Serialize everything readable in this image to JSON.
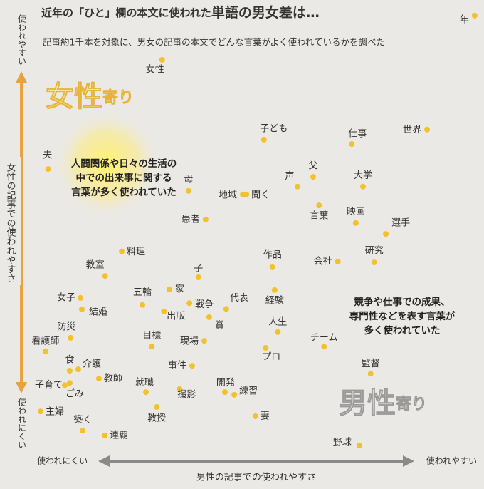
{
  "chart_data": {
    "type": "scatter",
    "title": "近年の「ひと」欄の本文に使われた",
    "title_emphasis": "単語の男女差は…",
    "subtitle": "記事約1千本を対象に、男女の記事の本文でどんな言葉がよく使われているかを調べた",
    "xaxis": {
      "label": "男性の記事での使われやすさ",
      "low": "使われにくい",
      "high": "使われやすい"
    },
    "yaxis": {
      "label": "女性の記事での使われやすさ",
      "low": "使われにくい",
      "high": "使われやすい"
    },
    "regions": [
      {
        "name": "女性",
        "suffix": "寄り"
      },
      {
        "name": "男性",
        "suffix": "寄り"
      }
    ],
    "annotations": [
      [
        "人間関係や日々の生活の",
        "中での出来事に関する",
        "言葉が多く使われていた"
      ],
      [
        "競争や仕事での成果、",
        "専門性などを表す言葉が",
        "多く使われていた"
      ]
    ],
    "color": "#f2c12e",
    "xlim": [
      0,
      100
    ],
    "ylim": [
      0,
      100
    ],
    "points": [
      {
        "label": "年",
        "x": 99.5,
        "y": 99.7
      },
      {
        "label": "女性",
        "x": 29.8,
        "y": 89.6
      },
      {
        "label": "子ども",
        "x": 52.5,
        "y": 71.4
      },
      {
        "label": "仕事",
        "x": 72.1,
        "y": 70.4
      },
      {
        "label": "世界",
        "x": 88.9,
        "y": 73.7
      },
      {
        "label": "夫",
        "x": 4.4,
        "y": 64.7
      },
      {
        "label": "父",
        "x": 63.5,
        "y": 62.9
      },
      {
        "label": "大学",
        "x": 74.6,
        "y": 60.7
      },
      {
        "label": "声",
        "x": 60.0,
        "y": 60.7
      },
      {
        "label": "母",
        "x": 35.7,
        "y": 59.7
      },
      {
        "label": "地域",
        "x": 47.8,
        "y": 58.9
      },
      {
        "label": "聞く",
        "x": 48.6,
        "y": 58.9
      },
      {
        "label": "言葉",
        "x": 64.8,
        "y": 56.4
      },
      {
        "label": "映画",
        "x": 73.0,
        "y": 52.4
      },
      {
        "label": "患者",
        "x": 39.5,
        "y": 53.2
      },
      {
        "label": "選手",
        "x": 79.7,
        "y": 49.9
      },
      {
        "label": "料理",
        "x": 20.8,
        "y": 45.9
      },
      {
        "label": "研究",
        "x": 77.1,
        "y": 43.4
      },
      {
        "label": "作品",
        "x": 54.4,
        "y": 42.3
      },
      {
        "label": "会社",
        "x": 69.0,
        "y": 43.6
      },
      {
        "label": "教室",
        "x": 17.1,
        "y": 40.3
      },
      {
        "label": "子",
        "x": 37.9,
        "y": 40.0
      },
      {
        "label": "五輪",
        "x": 25.4,
        "y": 33.7
      },
      {
        "label": "家",
        "x": 31.4,
        "y": 37.2
      },
      {
        "label": "戦争",
        "x": 35.9,
        "y": 34.1
      },
      {
        "label": "代表",
        "x": 44.1,
        "y": 32.8
      },
      {
        "label": "経験",
        "x": 54.9,
        "y": 37.1
      },
      {
        "label": "女子",
        "x": 11.6,
        "y": 35.3
      },
      {
        "label": "結婚",
        "x": 11.9,
        "y": 32.7
      },
      {
        "label": "出版",
        "x": 30.2,
        "y": 32.2
      },
      {
        "label": "賞",
        "x": 40.3,
        "y": 30.9
      },
      {
        "label": "人生",
        "x": 55.6,
        "y": 27.5
      },
      {
        "label": "防災",
        "x": 9.4,
        "y": 26.2
      },
      {
        "label": "目標",
        "x": 27.5,
        "y": 24.2
      },
      {
        "label": "現場",
        "x": 39.2,
        "y": 25.5
      },
      {
        "label": "チーム",
        "x": 65.9,
        "y": 24.2
      },
      {
        "label": "看護師",
        "x": 3.8,
        "y": 23.1
      },
      {
        "label": "プロ",
        "x": 52.9,
        "y": 23.9
      },
      {
        "label": "食",
        "x": 9.2,
        "y": 18.7
      },
      {
        "label": "介護",
        "x": 11.1,
        "y": 19.0
      },
      {
        "label": "事件",
        "x": 36.5,
        "y": 19.8
      },
      {
        "label": "監督",
        "x": 76.3,
        "y": 18.0
      },
      {
        "label": "子育て",
        "x": 8.1,
        "y": 15.4
      },
      {
        "label": "教師",
        "x": 15.7,
        "y": 16.9
      },
      {
        "label": "ごみ",
        "x": 9.2,
        "y": 15.9
      },
      {
        "label": "就職",
        "x": 26.2,
        "y": 13.8
      },
      {
        "label": "開発",
        "x": 43.8,
        "y": 13.8
      },
      {
        "label": "練習",
        "x": 45.9,
        "y": 13.2
      },
      {
        "label": "撮影",
        "x": 33.7,
        "y": 14.5
      },
      {
        "label": "教授",
        "x": 28.6,
        "y": 10.4
      },
      {
        "label": "主婦",
        "x": 2.7,
        "y": 9.4
      },
      {
        "label": "妻",
        "x": 50.6,
        "y": 8.3
      },
      {
        "label": "築く",
        "x": 12.1,
        "y": 5.0
      },
      {
        "label": "連覇",
        "x": 17.0,
        "y": 3.9
      },
      {
        "label": "野球",
        "x": 73.8,
        "y": 1.6
      }
    ]
  }
}
